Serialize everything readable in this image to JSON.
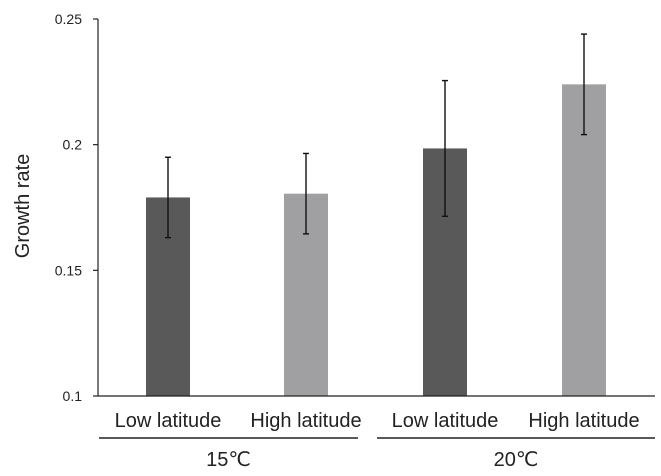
{
  "chart_data": {
    "type": "bar",
    "title": "",
    "xlabel": "",
    "ylabel": "Growth rate",
    "ylim": [
      0.1,
      0.25
    ],
    "yticks": [
      "0.1",
      "0.15",
      "0.2",
      "0.25"
    ],
    "grid": false,
    "groups": [
      {
        "label": "15℃",
        "bars": [
          {
            "category": "Low latitude",
            "value": 0.179,
            "err_low": 0.163,
            "err_high": 0.195,
            "color": "#595959"
          },
          {
            "category": "High latitude",
            "value": 0.1805,
            "err_low": 0.1645,
            "err_high": 0.1965,
            "color": "#a0a0a2"
          }
        ]
      },
      {
        "label": "20℃",
        "bars": [
          {
            "category": "Low latitude",
            "value": 0.1985,
            "err_low": 0.1715,
            "err_high": 0.2255,
            "color": "#595959"
          },
          {
            "category": "High latitude",
            "value": 0.224,
            "err_low": 0.204,
            "err_high": 0.244,
            "color": "#a0a0a2"
          }
        ]
      }
    ]
  }
}
